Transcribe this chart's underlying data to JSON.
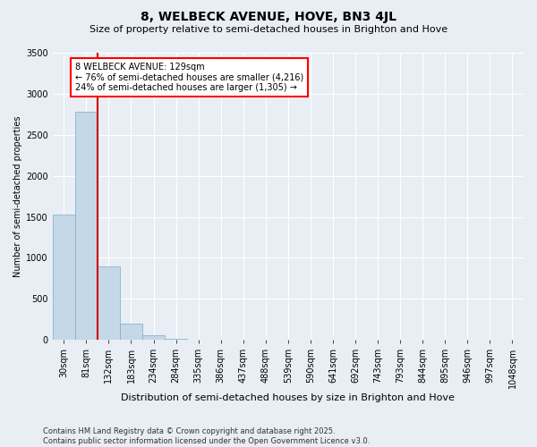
{
  "title": "8, WELBECK AVENUE, HOVE, BN3 4JL",
  "subtitle": "Size of property relative to semi-detached houses in Brighton and Hove",
  "xlabel": "Distribution of semi-detached houses by size in Brighton and Hove",
  "ylabel": "Number of semi-detached properties",
  "footnote1": "Contains HM Land Registry data © Crown copyright and database right 2025.",
  "footnote2": "Contains public sector information licensed under the Open Government Licence v3.0.",
  "annotation_line1": "8 WELBECK AVENUE: 129sqm",
  "annotation_line2": "← 76% of semi-detached houses are smaller (4,216)",
  "annotation_line3": "24% of semi-detached houses are larger (1,305) →",
  "property_size": 129,
  "bar_color": "#c5d8e8",
  "bar_edge_color": "#7baac8",
  "marker_color": "#cc0000",
  "background_color": "#e8eef4",
  "ylim": [
    0,
    3500
  ],
  "bin_labels": [
    "30sqm",
    "81sqm",
    "132sqm",
    "183sqm",
    "234sqm",
    "284sqm",
    "335sqm",
    "386sqm",
    "437sqm",
    "488sqm",
    "539sqm",
    "590sqm",
    "641sqm",
    "692sqm",
    "743sqm",
    "793sqm",
    "844sqm",
    "895sqm",
    "946sqm",
    "997sqm",
    "1048sqm"
  ],
  "values": [
    1530,
    2780,
    900,
    200,
    60,
    10,
    5,
    3,
    2,
    1,
    0,
    0,
    0,
    0,
    0,
    0,
    0,
    0,
    0,
    0
  ],
  "title_fontsize": 10,
  "subtitle_fontsize": 8,
  "ylabel_fontsize": 7,
  "xlabel_fontsize": 8,
  "tick_fontsize": 7,
  "footnote_fontsize": 6
}
